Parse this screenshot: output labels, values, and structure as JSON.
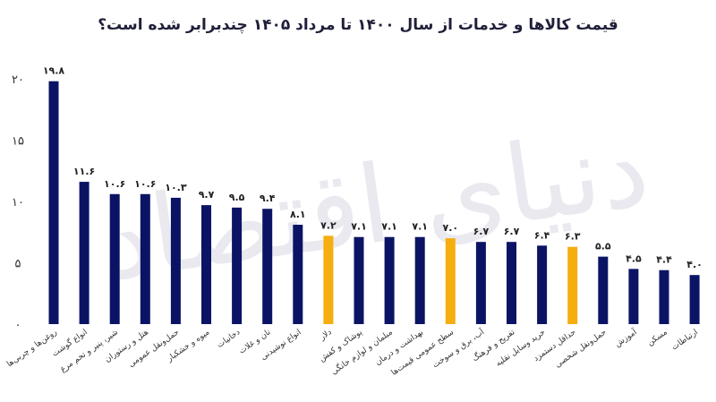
{
  "title": "قیمت کالاها و خدمات از سال ۱۴۰۰ تا مرداد ۱۴۰۵ چندبرابر شده است؟",
  "watermark": "دنیای اقتصاد",
  "colors": {
    "normal": "#0b1464",
    "highlight": "#f6ad0f"
  },
  "chart_data": {
    "type": "bar",
    "title": "قیمت کالاها و خدمات از سال ۱۴۰۰ تا مرداد ۱۴۰۵ چندبرابر شده است؟",
    "ylim": [
      0,
      20
    ],
    "yticks": [
      0,
      5,
      10,
      15,
      20
    ],
    "ytick_labels": [
      "۰",
      "۵",
      "۱۰",
      "۱۵",
      "۲۰"
    ],
    "grid": false,
    "categories": [
      "روغن‌ها و چربی‌ها",
      "انواع گوشت",
      "شیر، پنیر و تخم مرغ",
      "هتل و رستوران",
      "حمل‌ونقل عمومی",
      "میوه و خشکبار",
      "دخانیات",
      "نان و غلات",
      "انواع نوشیدنی",
      "دلار",
      "پوشاک و کفش",
      "مبلمان و لوازم خانگی",
      "بهداشت و درمان",
      "سطح عمومی قیمت‌ها",
      "آب، برق و سوخت",
      "تفریح و فرهنگ",
      "خرید وسایل نقلیه",
      "حداقل دستمزد",
      "حمل‌ونقل شخصی",
      "آموزش",
      "مسکن",
      "ارتباطات"
    ],
    "values": [
      19.8,
      11.6,
      10.6,
      10.6,
      10.3,
      9.7,
      9.5,
      9.4,
      8.1,
      7.2,
      7.1,
      7.1,
      7.1,
      7.0,
      6.7,
      6.7,
      6.4,
      6.3,
      5.5,
      4.5,
      4.4,
      4.0
    ],
    "value_labels": [
      "۱۹.۸",
      "۱۱.۶",
      "۱۰.۶",
      "۱۰.۶",
      "۱۰.۳",
      "۹.۷",
      "۹.۵",
      "۹.۴",
      "۸.۱",
      "۷.۲",
      "۷.۱",
      "۷.۱",
      "۷.۱",
      "۷.۰",
      "۶.۷",
      "۶.۷",
      "۶.۴",
      "۶.۳",
      "۵.۵",
      "۴.۵",
      "۴.۴",
      "۴.۰"
    ],
    "highlighted": [
      "دلار",
      "سطح عمومی قیمت‌ها",
      "حداقل دستمزد"
    ]
  }
}
